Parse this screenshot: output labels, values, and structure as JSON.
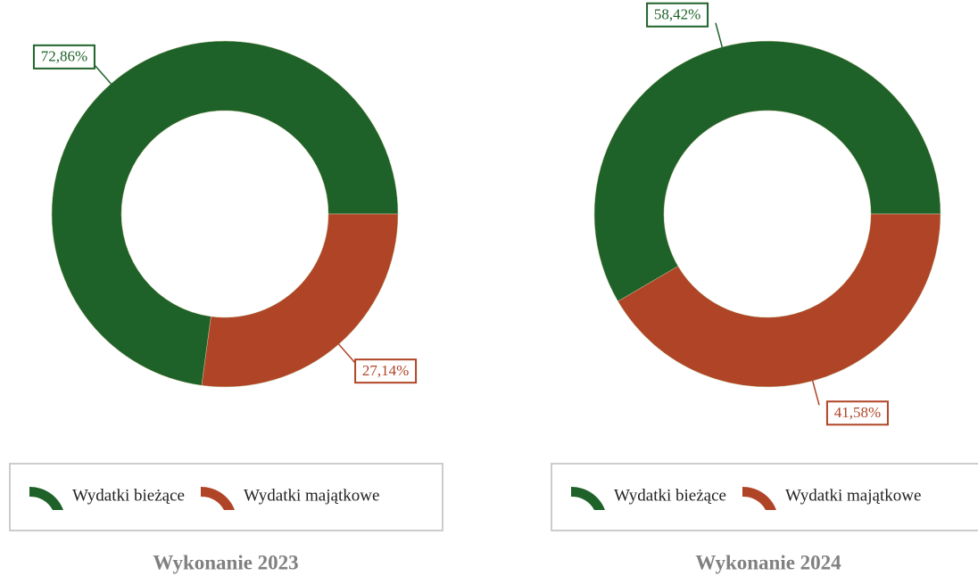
{
  "chart_data": [
    {
      "type": "donut",
      "title": "Wykonanie 2023",
      "categories": [
        "Wydatki bieżące",
        "Wydatki majątkowe"
      ],
      "values": [
        72.86,
        27.14
      ],
      "value_labels": [
        "72,86%",
        "27,14%"
      ],
      "colors": [
        "#1e6229",
        "#b04427"
      ]
    },
    {
      "type": "donut",
      "title": "Wykonanie 2024",
      "categories": [
        "Wydatki bieżące",
        "Wydatki majątkowe"
      ],
      "values": [
        58.42,
        41.58
      ],
      "value_labels": [
        "58,42%",
        "41,58%"
      ],
      "colors": [
        "#1e6229",
        "#b04427"
      ]
    }
  ]
}
